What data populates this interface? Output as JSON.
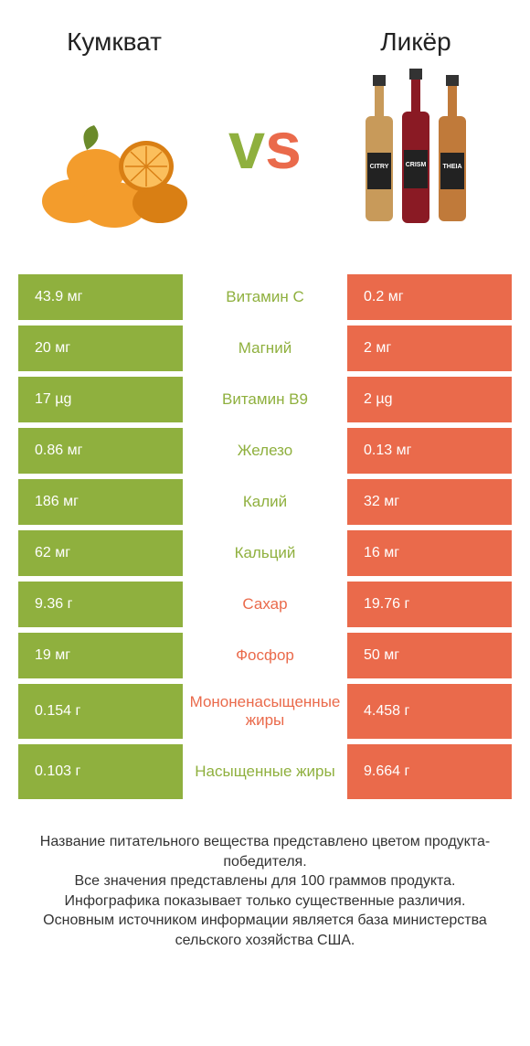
{
  "colors": {
    "left": "#8fb03e",
    "right": "#ea6a4b",
    "kumquat_fill": "#f39c2c",
    "kumquat_dark": "#d97f14",
    "kumquat_inner": "#fbbf5c",
    "leaf": "#6a8a2a",
    "bottle1": "#c89a5a",
    "bottle2": "#8a1a24",
    "bottle3": "#c07a3a",
    "label_dark": "#222222",
    "cap": "#333333"
  },
  "header": {
    "left_title": "Кумкват",
    "right_title": "Ликёр",
    "vs_v": "v",
    "vs_s": "s"
  },
  "rows": [
    {
      "label": "Витамин C",
      "left": "43.9 мг",
      "right": "0.2 мг",
      "winner": "left",
      "tall": false
    },
    {
      "label": "Магний",
      "left": "20 мг",
      "right": "2 мг",
      "winner": "left",
      "tall": false
    },
    {
      "label": "Витамин B9",
      "left": "17 µg",
      "right": "2 µg",
      "winner": "left",
      "tall": false
    },
    {
      "label": "Железо",
      "left": "0.86 мг",
      "right": "0.13 мг",
      "winner": "left",
      "tall": false
    },
    {
      "label": "Калий",
      "left": "186 мг",
      "right": "32 мг",
      "winner": "left",
      "tall": false
    },
    {
      "label": "Кальций",
      "left": "62 мг",
      "right": "16 мг",
      "winner": "left",
      "tall": false
    },
    {
      "label": "Сахар",
      "left": "9.36 г",
      "right": "19.76 г",
      "winner": "right",
      "tall": false
    },
    {
      "label": "Фосфор",
      "left": "19 мг",
      "right": "50 мг",
      "winner": "right",
      "tall": false
    },
    {
      "label": "Мононенасыщенные жиры",
      "left": "0.154 г",
      "right": "4.458 г",
      "winner": "right",
      "tall": true
    },
    {
      "label": "Насыщенные жиры",
      "left": "0.103 г",
      "right": "9.664 г",
      "winner": "left",
      "tall": true
    }
  ],
  "footer": {
    "line1": "Название питательного вещества представлено цветом продукта-победителя.",
    "line2": "Все значения представлены для 100 граммов продукта.",
    "line3": "Инфографика показывает только существенные различия.",
    "line4": "Основным источником информации является база министерства сельского хозяйства США."
  }
}
